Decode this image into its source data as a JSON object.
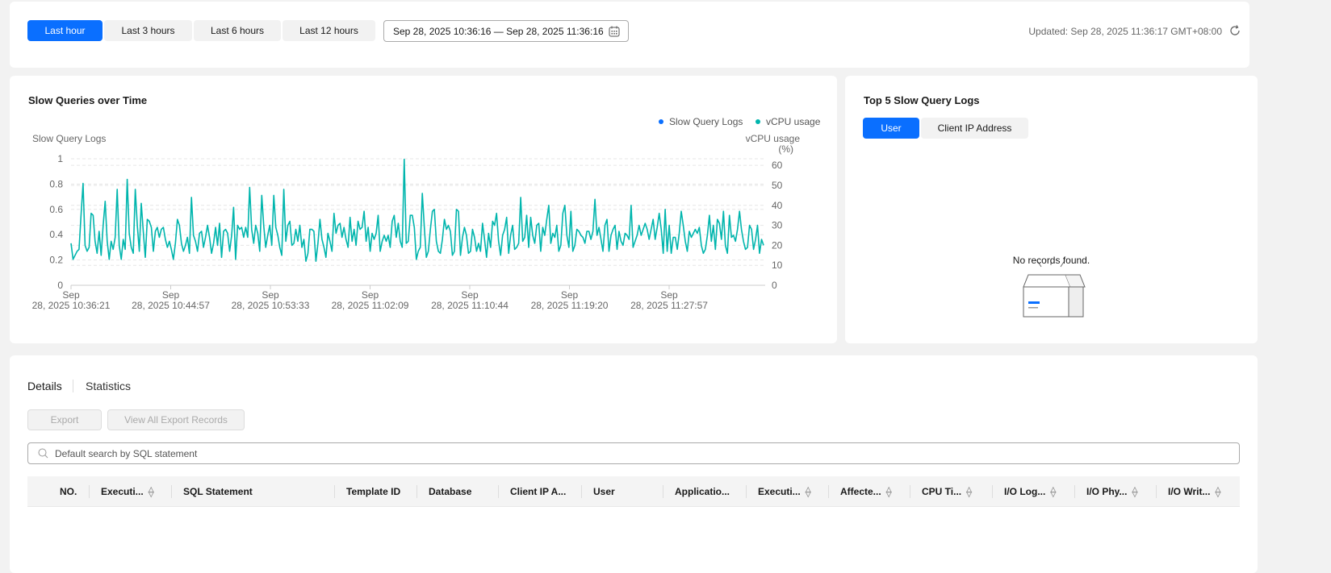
{
  "toolbar": {
    "ranges": [
      "Last hour",
      "Last 3 hours",
      "Last 6 hours",
      "Last 12 hours"
    ],
    "active_range": 0,
    "date_range": "Sep 28, 2025 10:36:16 — Sep 28, 2025 11:36:16",
    "updated": "Updated: Sep 28, 2025 11:36:17 GMT+08:00"
  },
  "chart_panel": {
    "title": "Slow Queries over Time"
  },
  "chart_data": {
    "type": "line",
    "left_label": "Slow Query Logs",
    "right_label_1": "vCPU usage",
    "right_label_2": "(%)",
    "legend": [
      {
        "name": "Slow Query Logs",
        "color": "#0a6fff"
      },
      {
        "name": "vCPU usage",
        "color": "#00b5ad"
      }
    ],
    "legend_position": "top-right",
    "left_ticks": [
      "0",
      "0.2",
      "0.4",
      "0.6",
      "0.8",
      "1"
    ],
    "left_ylim": [
      0,
      1
    ],
    "right_ticks": [
      "0",
      "10",
      "20",
      "30",
      "40",
      "50",
      "60"
    ],
    "right_ylim": [
      0,
      63.3
    ],
    "x_ticks": [
      {
        "line1": "Sep",
        "line2": "28, 2025 10:36:21"
      },
      {
        "line1": "Sep",
        "line2": "28, 2025 10:44:57"
      },
      {
        "line1": "Sep",
        "line2": "28, 2025 10:53:33"
      },
      {
        "line1": "Sep",
        "line2": "28, 2025 11:02:09"
      },
      {
        "line1": "Sep",
        "line2": "28, 2025 11:10:44"
      },
      {
        "line1": "Sep",
        "line2": "28, 2025 11:19:20"
      },
      {
        "line1": "Sep",
        "line2": "28, 2025 11:27:57"
      }
    ],
    "grid": "dashed horizontal",
    "series": [
      {
        "name": "vCPU usage",
        "values": [
          21,
          13,
          15,
          17,
          18,
          35,
          51,
          20,
          17,
          19,
          36,
          35,
          22,
          16,
          27,
          15,
          30,
          42,
          22,
          13,
          22,
          18,
          24,
          48,
          20,
          13,
          23,
          18,
          53,
          26,
          19,
          16,
          48,
          30,
          17,
          41,
          27,
          14,
          33,
          32,
          29,
          17,
          27,
          29,
          24,
          28,
          29,
          23,
          19,
          22,
          18,
          13,
          21,
          33,
          30,
          21,
          17,
          20,
          24,
          16,
          44,
          25,
          22,
          17,
          26,
          27,
          19,
          24,
          30,
          24,
          16,
          21,
          29,
          20,
          31,
          14,
          27,
          28,
          26,
          17,
          25,
          39,
          13,
          30,
          28,
          29,
          24,
          29,
          24,
          49,
          28,
          21,
          30,
          26,
          17,
          45,
          30,
          19,
          25,
          30,
          20,
          45,
          29,
          25,
          19,
          15,
          48,
          22,
          30,
          32,
          20,
          21,
          28,
          22,
          30,
          19,
          23,
          12,
          16,
          28,
          28,
          27,
          12,
          21,
          33,
          23,
          19,
          14,
          26,
          22,
          17,
          36,
          26,
          30,
          31,
          24,
          29,
          23,
          19,
          34,
          22,
          28,
          20,
          32,
          28,
          29,
          37,
          22,
          29,
          17,
          26,
          23,
          26,
          35,
          17,
          22,
          25,
          22,
          25,
          19,
          32,
          35,
          24,
          31,
          22,
          19,
          63,
          21,
          22,
          35,
          35,
          29,
          13,
          17,
          19,
          46,
          29,
          14,
          17,
          28,
          37,
          38,
          22,
          17,
          16,
          23,
          33,
          28,
          30,
          27,
          15,
          17,
          38,
          37,
          15,
          24,
          29,
          25,
          16,
          17,
          28,
          24,
          17,
          21,
          17,
          31,
          23,
          14,
          26,
          19,
          32,
          30,
          36,
          22,
          15,
          25,
          28,
          34,
          16,
          25,
          30,
          18,
          19,
          21,
          44,
          22,
          24,
          35,
          19,
          34,
          25,
          21,
          30,
          31,
          17,
          29,
          25,
          33,
          40,
          21,
          26,
          24,
          30,
          17,
          20,
          36,
          40,
          25,
          19,
          37,
          17,
          20,
          28,
          27,
          25,
          24,
          21,
          27,
          27,
          23,
          27,
          43,
          25,
          29,
          23,
          17,
          30,
          33,
          17,
          25,
          28,
          30,
          18,
          27,
          22,
          20,
          26,
          25,
          23,
          40,
          19,
          22,
          25,
          30,
          25,
          28,
          31,
          28,
          23,
          28,
          33,
          23,
          29,
          36,
          28,
          16,
          38,
          17,
          30,
          16,
          24,
          24,
          18,
          26,
          37,
          30,
          22,
          17,
          27,
          24,
          26,
          28,
          26,
          29,
          20,
          16,
          18,
          25,
          35,
          22,
          30,
          18,
          33,
          31,
          23,
          37,
          20,
          16,
          35,
          24,
          25,
          22,
          28,
          37,
          28,
          22,
          18,
          19,
          30,
          28,
          18,
          23,
          30,
          16,
          23,
          20
        ]
      }
    ]
  },
  "top5": {
    "title": "Top 5 Slow Query Logs",
    "tabs": [
      "User",
      "Client IP Address"
    ],
    "empty": "No records found."
  },
  "details": {
    "tabs": [
      "Details",
      "Statistics"
    ],
    "export": "Export",
    "view_exports": "View All Export Records",
    "search_placeholder": "Default search by SQL statement",
    "columns": [
      "NO.",
      "Executi...",
      "SQL Statement",
      "Template ID",
      "Database",
      "Client IP A...",
      "User",
      "Applicatio...",
      "Executi...",
      "Affecte...",
      "CPU Ti...",
      "I/O Log...",
      "I/O Phy...",
      "I/O Writ..."
    ]
  }
}
